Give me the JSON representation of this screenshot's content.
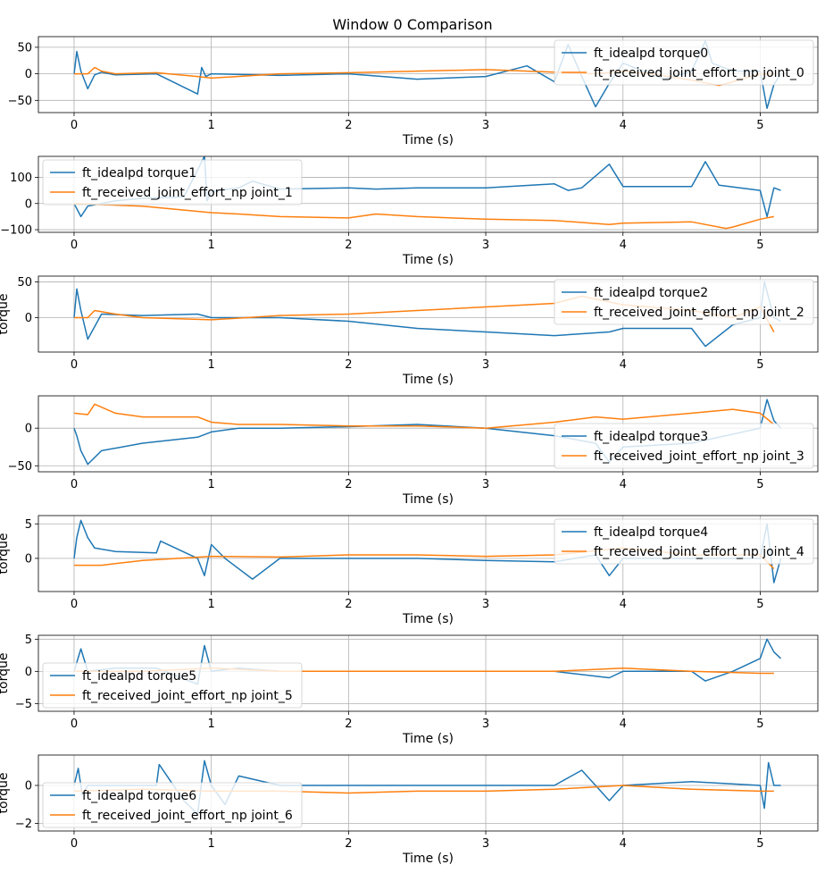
{
  "title": "Window 0 Comparison",
  "colors": {
    "series_a": "#1f77b4",
    "series_b": "#ff7f0e",
    "grid": "#b0b0b0"
  },
  "chart_data": [
    {
      "type": "line",
      "xlabel": "Time (s)",
      "ylabel": "",
      "xlim": [
        -0.26,
        5.42
      ],
      "ylim": [
        -73,
        70
      ],
      "xticks": [
        0,
        1,
        2,
        3,
        4,
        5
      ],
      "yticks": [
        -50,
        0,
        50
      ],
      "grid": true,
      "legend": "top-right",
      "series": [
        {
          "name": "ft_idealpd torque0",
          "x": [
            0,
            0.02,
            0.05,
            0.1,
            0.15,
            0.2,
            0.3,
            0.6,
            0.9,
            0.93,
            0.96,
            1.0,
            1.5,
            2.0,
            2.5,
            3.0,
            3.3,
            3.5,
            3.6,
            3.7,
            3.8,
            3.9,
            4.0,
            4.3,
            4.5,
            4.6,
            4.65,
            4.8,
            5.0,
            5.05,
            5.1,
            5.15
          ],
          "values": [
            0,
            42,
            5,
            -28,
            -2,
            3,
            -2,
            0,
            -38,
            12,
            -5,
            0,
            -3,
            0,
            -10,
            -5,
            15,
            -15,
            55,
            -5,
            -62,
            -18,
            20,
            -10,
            5,
            62,
            20,
            5,
            5,
            -65,
            -20,
            0
          ]
        },
        {
          "name": "ft_received_joint_effort_np joint_0",
          "x": [
            0,
            0.1,
            0.15,
            0.2,
            0.3,
            0.6,
            0.9,
            1.0,
            1.5,
            2.0,
            2.5,
            3.0,
            3.5,
            3.8,
            4.0,
            4.2,
            4.5,
            4.7,
            4.8,
            5.0,
            5.1
          ],
          "values": [
            0,
            0,
            12,
            5,
            0,
            2,
            -5,
            -8,
            0,
            2,
            5,
            8,
            3,
            0,
            5,
            0,
            -12,
            -22,
            -15,
            0,
            0
          ]
        }
      ]
    },
    {
      "type": "line",
      "xlabel": "Time (s)",
      "ylabel": "",
      "xlim": [
        -0.26,
        5.42
      ],
      "ylim": [
        -110,
        180
      ],
      "xticks": [
        0,
        1,
        2,
        3,
        4,
        5
      ],
      "yticks": [
        -100,
        0,
        100
      ],
      "grid": true,
      "legend": "top-left",
      "series": [
        {
          "name": "ft_idealpd torque1",
          "x": [
            0,
            0.05,
            0.1,
            0.3,
            0.5,
            0.8,
            0.95,
            0.97,
            1.0,
            1.05,
            1.2,
            1.3,
            1.5,
            2.0,
            2.2,
            2.5,
            3.0,
            3.5,
            3.6,
            3.7,
            3.9,
            4.0,
            4.5,
            4.6,
            4.7,
            5.0,
            5.05,
            5.1,
            5.15
          ],
          "values": [
            0,
            -50,
            -10,
            10,
            20,
            25,
            180,
            10,
            45,
            50,
            60,
            85,
            55,
            60,
            55,
            60,
            60,
            75,
            50,
            60,
            150,
            65,
            65,
            160,
            70,
            50,
            -50,
            60,
            50
          ]
        },
        {
          "name": "ft_received_joint_effort_np joint_1",
          "x": [
            0,
            0.5,
            1.0,
            1.2,
            1.5,
            2.0,
            2.2,
            2.5,
            3.0,
            3.5,
            3.9,
            4.0,
            4.5,
            4.75,
            4.8,
            5.0,
            5.1
          ],
          "values": [
            0,
            -10,
            -35,
            -40,
            -50,
            -55,
            -40,
            -50,
            -60,
            -65,
            -80,
            -75,
            -70,
            -95,
            -90,
            -60,
            -50
          ]
        }
      ]
    },
    {
      "type": "line",
      "xlabel": "Time (s)",
      "ylabel": "torque",
      "xlim": [
        -0.26,
        5.42
      ],
      "ylim": [
        -48,
        58
      ],
      "xticks": [
        0,
        1,
        2,
        3,
        4,
        5
      ],
      "yticks": [
        0,
        50
      ],
      "grid": true,
      "legend": "top-right",
      "series": [
        {
          "name": "ft_idealpd torque2",
          "x": [
            0,
            0.02,
            0.05,
            0.1,
            0.2,
            0.5,
            0.9,
            1.0,
            1.5,
            2.0,
            2.5,
            3.0,
            3.5,
            3.9,
            4.0,
            4.5,
            4.6,
            4.8,
            5.0,
            5.03,
            5.1,
            5.15
          ],
          "values": [
            0,
            40,
            10,
            -30,
            5,
            3,
            5,
            0,
            0,
            -5,
            -15,
            -20,
            -25,
            -20,
            -15,
            -15,
            -40,
            -10,
            0,
            50,
            0,
            -5
          ]
        },
        {
          "name": "ft_received_joint_effort_np joint_2",
          "x": [
            0,
            0.1,
            0.15,
            0.3,
            0.5,
            1.0,
            1.5,
            2.0,
            2.5,
            3.0,
            3.5,
            3.7,
            4.0,
            4.5,
            4.8,
            5.0,
            5.1
          ],
          "values": [
            0,
            0,
            10,
            5,
            0,
            -3,
            3,
            5,
            10,
            15,
            20,
            30,
            18,
            10,
            0,
            15,
            -20
          ]
        }
      ]
    },
    {
      "type": "line",
      "xlabel": "Time (s)",
      "ylabel": "",
      "xlim": [
        -0.26,
        5.42
      ],
      "ylim": [
        -58,
        43
      ],
      "xticks": [
        0,
        1,
        2,
        3,
        4,
        5
      ],
      "yticks": [
        -50,
        0
      ],
      "grid": true,
      "legend": "bottom-right",
      "series": [
        {
          "name": "ft_idealpd torque3",
          "x": [
            0,
            0.02,
            0.05,
            0.1,
            0.2,
            0.5,
            0.9,
            1.0,
            1.2,
            1.5,
            2.0,
            2.5,
            3.0,
            3.5,
            3.8,
            3.9,
            4.0,
            4.5,
            5.0,
            5.05,
            5.1,
            5.15
          ],
          "values": [
            0,
            -10,
            -30,
            -48,
            -30,
            -20,
            -12,
            -5,
            0,
            0,
            2,
            5,
            0,
            -10,
            -20,
            -45,
            -25,
            -20,
            0,
            38,
            10,
            0
          ]
        },
        {
          "name": "ft_received_joint_effort_np joint_3",
          "x": [
            0,
            0.1,
            0.15,
            0.3,
            0.5,
            0.9,
            1.0,
            1.2,
            1.5,
            2.0,
            2.5,
            3.0,
            3.5,
            3.8,
            4.0,
            4.5,
            4.8,
            5.0,
            5.1
          ],
          "values": [
            20,
            18,
            32,
            20,
            15,
            15,
            8,
            5,
            5,
            3,
            3,
            0,
            8,
            15,
            12,
            20,
            25,
            20,
            5
          ]
        }
      ]
    },
    {
      "type": "line",
      "xlabel": "Time (s)",
      "ylabel": "torque",
      "xlim": [
        -0.26,
        5.42
      ],
      "ylim": [
        -4.8,
        6.2
      ],
      "xticks": [
        0,
        1,
        2,
        3,
        4,
        5
      ],
      "yticks": [
        0,
        5
      ],
      "grid": true,
      "legend": "top-right",
      "series": [
        {
          "name": "ft_idealpd torque4",
          "x": [
            0,
            0.02,
            0.05,
            0.1,
            0.15,
            0.3,
            0.6,
            0.63,
            0.9,
            0.95,
            1.0,
            1.1,
            1.3,
            1.5,
            2.0,
            2.5,
            3.0,
            3.5,
            3.8,
            3.9,
            4.0,
            4.5,
            5.0,
            5.05,
            5.1,
            5.15
          ],
          "values": [
            0,
            3,
            5.5,
            3,
            1.5,
            1,
            0.8,
            2.5,
            0,
            -2.5,
            2,
            0,
            -3,
            0,
            0,
            0,
            -0.3,
            -0.5,
            0.5,
            -2.5,
            0,
            0,
            0,
            5,
            -3.5,
            0
          ]
        },
        {
          "name": "ft_received_joint_effort_np joint_4",
          "x": [
            0,
            0.2,
            0.5,
            1.0,
            1.5,
            2.0,
            2.5,
            3.0,
            3.5,
            4.0,
            4.5,
            5.0,
            5.1
          ],
          "values": [
            -1,
            -1,
            -0.3,
            0.3,
            0.2,
            0.5,
            0.5,
            0.3,
            0.5,
            1.5,
            0.5,
            0.5,
            -1.5
          ]
        }
      ]
    },
    {
      "type": "line",
      "xlabel": "Time (s)",
      "ylabel": "torque",
      "xlim": [
        -0.26,
        5.42
      ],
      "ylim": [
        -6.2,
        5.6
      ],
      "xticks": [
        0,
        1,
        2,
        3,
        4,
        5
      ],
      "yticks": [
        -5,
        0,
        5
      ],
      "grid": true,
      "legend": "bottom-left",
      "series": [
        {
          "name": "ft_idealpd torque5",
          "x": [
            0,
            0.05,
            0.1,
            0.3,
            0.6,
            0.9,
            0.95,
            1.0,
            1.2,
            1.5,
            2.0,
            2.5,
            3.0,
            3.5,
            3.9,
            4.0,
            4.5,
            4.6,
            4.8,
            5.0,
            5.05,
            5.1,
            5.15
          ],
          "values": [
            0,
            3.5,
            0,
            0.5,
            0.5,
            -2,
            4,
            0,
            0.5,
            0,
            0,
            0,
            0,
            0,
            -1,
            0,
            0,
            -1.5,
            0,
            2,
            5,
            3,
            2
          ]
        },
        {
          "name": "ft_received_joint_effort_np joint_5",
          "x": [
            0,
            0.5,
            1.0,
            1.5,
            2.0,
            2.5,
            3.0,
            3.5,
            4.0,
            4.5,
            5.0,
            5.1
          ],
          "values": [
            0,
            0,
            0.5,
            0,
            0,
            0,
            0,
            0,
            0.5,
            0,
            -0.3,
            -0.3
          ]
        }
      ]
    },
    {
      "type": "line",
      "xlabel": "Time (s)",
      "ylabel": "torque",
      "xlim": [
        -0.26,
        5.42
      ],
      "ylim": [
        -2.4,
        1.6
      ],
      "xticks": [
        0,
        1,
        2,
        3,
        4,
        5
      ],
      "yticks": [
        -2,
        0
      ],
      "grid": true,
      "legend": "bottom-left",
      "series": [
        {
          "name": "ft_idealpd torque6",
          "x": [
            0,
            0.03,
            0.06,
            0.1,
            0.3,
            0.6,
            0.62,
            0.8,
            0.9,
            0.95,
            1.0,
            1.1,
            1.2,
            1.5,
            2.0,
            2.5,
            3.0,
            3.5,
            3.7,
            3.9,
            4.0,
            4.5,
            5.0,
            5.03,
            5.06,
            5.1,
            5.15
          ],
          "values": [
            0,
            0.9,
            -0.5,
            0,
            0,
            0,
            1.1,
            -0.8,
            -1.5,
            1.3,
            0,
            -1,
            0.5,
            0,
            0,
            0,
            0,
            0,
            0.8,
            -0.8,
            0,
            0.2,
            0,
            -1.2,
            1.2,
            0,
            0
          ]
        },
        {
          "name": "ft_received_joint_effort_np joint_6",
          "x": [
            0,
            0.5,
            1.0,
            1.5,
            2.0,
            2.5,
            3.0,
            3.5,
            4.0,
            4.5,
            5.0,
            5.1
          ],
          "values": [
            -0.3,
            -0.2,
            -0.3,
            -0.3,
            -0.4,
            -0.3,
            -0.3,
            -0.2,
            0,
            -0.2,
            -0.3,
            -0.3
          ]
        }
      ]
    }
  ]
}
